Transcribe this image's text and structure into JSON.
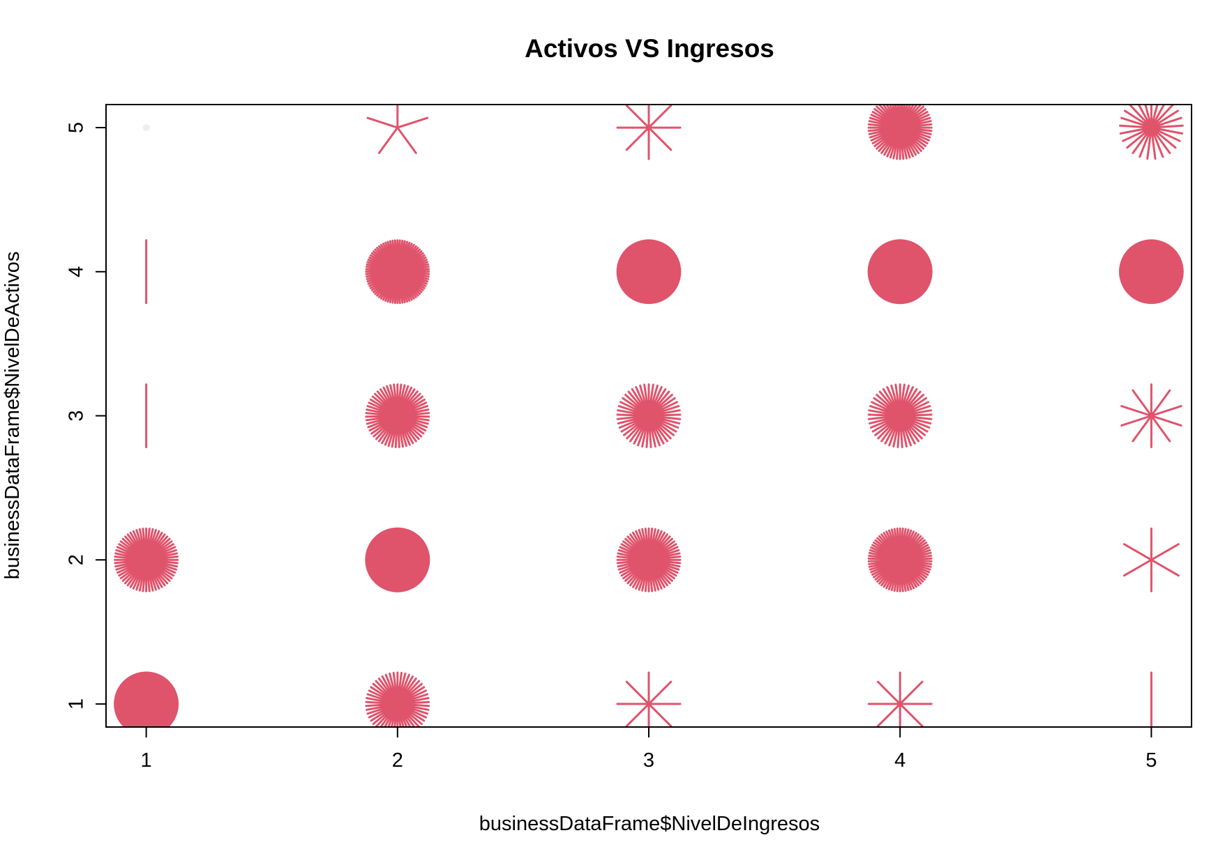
{
  "chart_data": {
    "type": "scatter",
    "marker": "sunflower",
    "title": "Activos VS Ingresos",
    "xlabel": "businessDataFrame$NivelDeIngresos",
    "ylabel": "businessDataFrame$NivelDeActivos",
    "xlim": [
      0.84,
      5.16
    ],
    "ylim": [
      0.84,
      5.16
    ],
    "xticks": [
      "1",
      "2",
      "3",
      "4",
      "5"
    ],
    "yticks": [
      "1",
      "2",
      "3",
      "4",
      "5"
    ],
    "point_color": "#df536b",
    "single_point_color": "#eeeeee",
    "points": [
      {
        "x": 1,
        "y": 1,
        "count": 200
      },
      {
        "x": 1,
        "y": 2,
        "count": 60
      },
      {
        "x": 1,
        "y": 3,
        "count": 2
      },
      {
        "x": 1,
        "y": 4,
        "count": 2
      },
      {
        "x": 1,
        "y": 5,
        "count": 1
      },
      {
        "x": 2,
        "y": 1,
        "count": 50
      },
      {
        "x": 2,
        "y": 2,
        "count": 300
      },
      {
        "x": 2,
        "y": 3,
        "count": 55
      },
      {
        "x": 2,
        "y": 4,
        "count": 80
      },
      {
        "x": 2,
        "y": 5,
        "count": 5
      },
      {
        "x": 3,
        "y": 1,
        "count": 8
      },
      {
        "x": 3,
        "y": 2,
        "count": 60
      },
      {
        "x": 3,
        "y": 3,
        "count": 45
      },
      {
        "x": 3,
        "y": 4,
        "count": 120
      },
      {
        "x": 3,
        "y": 5,
        "count": 8
      },
      {
        "x": 4,
        "y": 1,
        "count": 8
      },
      {
        "x": 4,
        "y": 2,
        "count": 70
      },
      {
        "x": 4,
        "y": 3,
        "count": 45
      },
      {
        "x": 4,
        "y": 4,
        "count": 400
      },
      {
        "x": 4,
        "y": 5,
        "count": 60
      },
      {
        "x": 5,
        "y": 1,
        "count": 2
      },
      {
        "x": 5,
        "y": 2,
        "count": 6
      },
      {
        "x": 5,
        "y": 3,
        "count": 10
      },
      {
        "x": 5,
        "y": 4,
        "count": 120
      },
      {
        "x": 5,
        "y": 5,
        "count": 25
      }
    ]
  }
}
